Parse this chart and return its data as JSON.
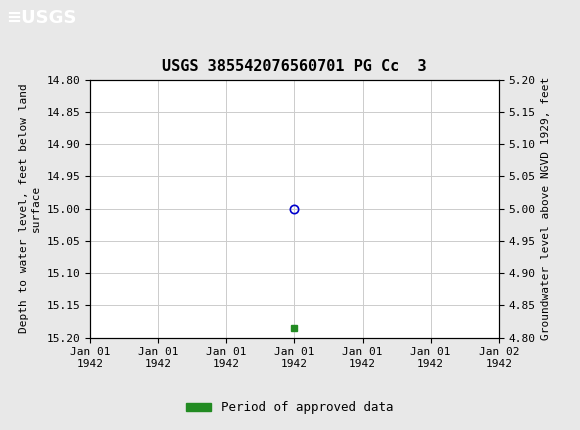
{
  "title": "USGS 385542076560701 PG Cc  3",
  "ylabel_left": "Depth to water level, feet below land\nsurface",
  "ylabel_right": "Groundwater level above NGVD 1929, feet",
  "ylim_left": [
    14.8,
    15.2
  ],
  "ylim_right_top": 5.2,
  "ylim_right_bottom": 4.8,
  "xlim": [
    0,
    6
  ],
  "yticks_left": [
    14.8,
    14.85,
    14.9,
    14.95,
    15.0,
    15.05,
    15.1,
    15.15,
    15.2
  ],
  "yticks_right": [
    5.2,
    5.15,
    5.1,
    5.05,
    5.0,
    4.95,
    4.9,
    4.85,
    4.8
  ],
  "xtick_labels": [
    "Jan 01\n1942",
    "Jan 01\n1942",
    "Jan 01\n1942",
    "Jan 01\n1942",
    "Jan 01\n1942",
    "Jan 01\n1942",
    "Jan 02\n1942"
  ],
  "xtick_positions": [
    0,
    1,
    2,
    3,
    4,
    5,
    6
  ],
  "data_point_x": 3,
  "data_point_y": 15.0,
  "data_point_color": "#0000cc",
  "green_dot_x": 3,
  "green_dot_y": 15.185,
  "green_dot_color": "#228B22",
  "header_color": "#1a6b3a",
  "header_text_color": "#ffffff",
  "grid_color": "#cccccc",
  "background_color": "#e8e8e8",
  "plot_bg_color": "#ffffff",
  "legend_label": "Period of approved data",
  "legend_color": "#228B22",
  "title_fontsize": 11,
  "axis_label_fontsize": 8,
  "tick_fontsize": 8,
  "legend_fontsize": 9
}
